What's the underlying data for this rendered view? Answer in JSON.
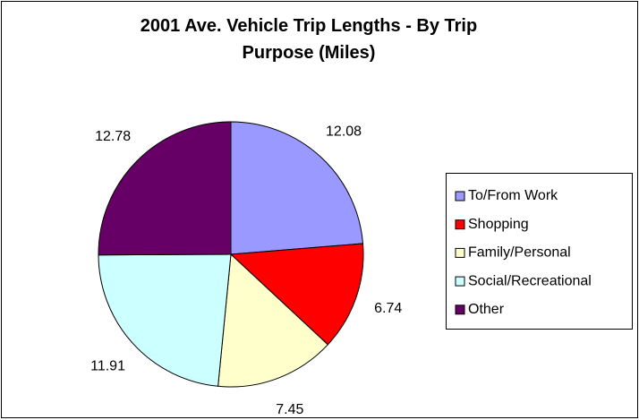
{
  "chart_data": {
    "type": "pie",
    "title": "2001 Ave. Vehicle Trip Lengths - By Trip Purpose (Miles)",
    "categories": [
      "To/From Work",
      "Shopping",
      "Family/Personal",
      "Social/Recreational",
      "Other"
    ],
    "values": [
      12.08,
      6.74,
      7.45,
      11.91,
      12.78
    ],
    "colors": [
      "#9999ff",
      "#ff0000",
      "#ffffcc",
      "#ccffff",
      "#660066"
    ],
    "legend": "right"
  }
}
